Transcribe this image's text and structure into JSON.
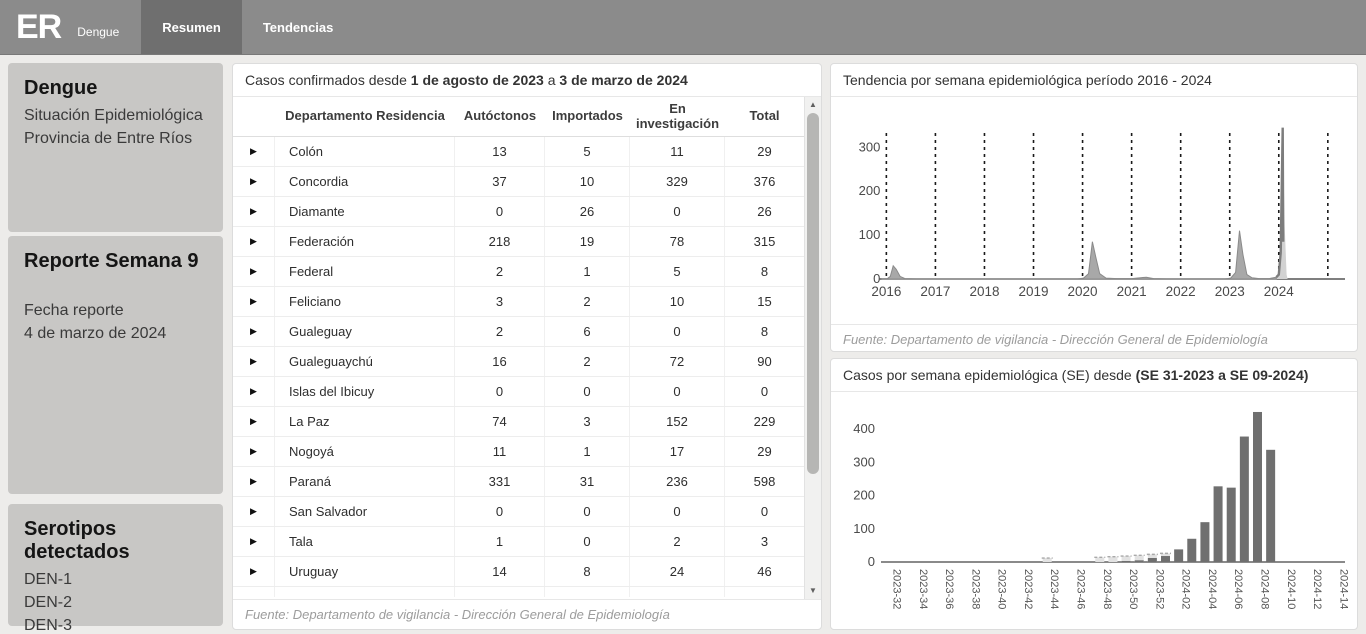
{
  "navbar": {
    "logo": "ER",
    "brand": "Dengue",
    "tabs": [
      {
        "label": "Resumen",
        "active": true
      },
      {
        "label": "Tendencias",
        "active": false
      }
    ]
  },
  "sidebar": {
    "boxes": [
      {
        "title": "Dengue",
        "lines": [
          "Situación Epidemiológica",
          "Provincia de Entre Ríos"
        ]
      },
      {
        "title": "Reporte Semana 9",
        "lines": [
          "Fecha reporte",
          "4 de marzo de 2024"
        ]
      },
      {
        "title": "Serotipos detectados",
        "lines": [
          "DEN-1",
          "DEN-2",
          "DEN-3"
        ]
      }
    ]
  },
  "table_panel": {
    "title": {
      "prefix": "Casos confirmados desde ",
      "bold1": "1 de agosto de 2023",
      "mid": " a ",
      "bold2": "3 de marzo de 2024"
    },
    "columns": [
      "Departamento Residencia",
      "Autóctonos",
      "Importados",
      "En investigación",
      "Total"
    ],
    "expander_icon": "▶",
    "rows": [
      {
        "departamento": "Colón",
        "autoctonos": 13,
        "importados": 5,
        "en_investigacion": 11,
        "total": 29
      },
      {
        "departamento": "Concordia",
        "autoctonos": 37,
        "importados": 10,
        "en_investigacion": 329,
        "total": 376
      },
      {
        "departamento": "Diamante",
        "autoctonos": 0,
        "importados": 26,
        "en_investigacion": 0,
        "total": 26
      },
      {
        "departamento": "Federación",
        "autoctonos": 218,
        "importados": 19,
        "en_investigacion": 78,
        "total": 315
      },
      {
        "departamento": "Federal",
        "autoctonos": 2,
        "importados": 1,
        "en_investigacion": 5,
        "total": 8
      },
      {
        "departamento": "Feliciano",
        "autoctonos": 3,
        "importados": 2,
        "en_investigacion": 10,
        "total": 15
      },
      {
        "departamento": "Gualeguay",
        "autoctonos": 2,
        "importados": 6,
        "en_investigacion": 0,
        "total": 8
      },
      {
        "departamento": "Gualeguaychú",
        "autoctonos": 16,
        "importados": 2,
        "en_investigacion": 72,
        "total": 90
      },
      {
        "departamento": "Islas del Ibicuy",
        "autoctonos": 0,
        "importados": 0,
        "en_investigacion": 0,
        "total": 0
      },
      {
        "departamento": "La Paz",
        "autoctonos": 74,
        "importados": 3,
        "en_investigacion": 152,
        "total": 229
      },
      {
        "departamento": "Nogoyá",
        "autoctonos": 11,
        "importados": 1,
        "en_investigacion": 17,
        "total": 29
      },
      {
        "departamento": "Paraná",
        "autoctonos": 331,
        "importados": 31,
        "en_investigacion": 236,
        "total": 598
      },
      {
        "departamento": "San Salvador",
        "autoctonos": 0,
        "importados": 0,
        "en_investigacion": 0,
        "total": 0
      },
      {
        "departamento": "Tala",
        "autoctonos": 1,
        "importados": 0,
        "en_investigacion": 2,
        "total": 3
      },
      {
        "departamento": "Uruguay",
        "autoctonos": 14,
        "importados": 8,
        "en_investigacion": 24,
        "total": 46
      }
    ],
    "footer": "Fuente: Departamento de vigilancia - Dirección General de Epidemiología"
  },
  "trend_panel": {
    "title": "Tendencia por semana epidemiológica período 2016 - 2024",
    "footer": "Fuente: Departamento de vigilancia - Dirección General de Epidemiología"
  },
  "weekly_panel": {
    "title": {
      "prefix": "Casos por semana epidemiológica (SE) desde ",
      "bold": "(SE 31-2023 a SE 09-2024)"
    }
  },
  "colors": {
    "navbar": "#8b8b8b",
    "navbar_active_tab": "#6f6f6f",
    "sidebar_card": "#c8c7c5",
    "bar_fill": "#6f6f6f",
    "bar_light_fill": "#e2e2e2",
    "area_fill": "#a8a8a8",
    "area_line": "#8a8a8a",
    "area_recent_fill": "#d2d2d2",
    "area_recent_line": "#7d7d7d",
    "gridline": "#1a1a1a",
    "axis": "#555555",
    "tick_text": "#4a4a4a"
  },
  "chart_data": [
    {
      "type": "area",
      "title": "Tendencia por semana epidemiológica período 2016 - 2024",
      "xlabel": "",
      "ylabel": "",
      "xlim": [
        2015.85,
        2025.35
      ],
      "ylim": [
        0,
        360
      ],
      "x_ticks": [
        2016,
        2017,
        2018,
        2019,
        2020,
        2021,
        2022,
        2023,
        2024
      ],
      "y_ticks": [
        0,
        100,
        200,
        300
      ],
      "year_gridlines": [
        2016,
        2017,
        2018,
        2019,
        2020,
        2021,
        2022,
        2023,
        2024,
        2025
      ],
      "grid_style": "dotted-vertical",
      "legend": "none",
      "series": [
        {
          "name": "Casos semanales 2016-2023",
          "points": [
            [
              2015.9,
              0
            ],
            [
              2016.02,
              1
            ],
            [
              2016.08,
              6
            ],
            [
              2016.14,
              30
            ],
            [
              2016.2,
              22
            ],
            [
              2016.28,
              6
            ],
            [
              2016.38,
              1
            ],
            [
              2016.6,
              0
            ],
            [
              2017.5,
              0
            ],
            [
              2018.5,
              0
            ],
            [
              2019.5,
              0
            ],
            [
              2019.9,
              0
            ],
            [
              2020.02,
              2
            ],
            [
              2020.12,
              12
            ],
            [
              2020.2,
              85
            ],
            [
              2020.27,
              50
            ],
            [
              2020.35,
              12
            ],
            [
              2020.48,
              2
            ],
            [
              2020.7,
              1
            ],
            [
              2021.0,
              1
            ],
            [
              2021.18,
              3
            ],
            [
              2021.3,
              4
            ],
            [
              2021.45,
              1
            ],
            [
              2021.7,
              0
            ],
            [
              2022.5,
              0
            ],
            [
              2022.9,
              0
            ],
            [
              2023.02,
              2
            ],
            [
              2023.12,
              15
            ],
            [
              2023.2,
              110
            ],
            [
              2023.27,
              55
            ],
            [
              2023.35,
              10
            ],
            [
              2023.45,
              3
            ],
            [
              2023.6,
              1
            ],
            [
              2023.8,
              1
            ],
            [
              2023.95,
              4
            ]
          ]
        },
        {
          "name": "Casos semanales 2024 (últimas semanas)",
          "points": [
            [
              2023.95,
              4
            ],
            [
              2024.0,
              10
            ],
            [
              2024.04,
              60
            ],
            [
              2024.08,
              345
            ],
            [
              2024.12,
              120
            ],
            [
              2024.16,
              10
            ],
            [
              2024.18,
              0
            ]
          ]
        }
      ],
      "recent_line": [
        [
          2023.95,
          4
        ],
        [
          2024.0,
          10
        ],
        [
          2024.04,
          60
        ],
        [
          2024.08,
          345
        ],
        [
          2024.09,
          85
        ]
      ]
    },
    {
      "type": "bar",
      "title": "Casos por semana epidemiológica (SE) desde SE 31-2023 a SE 09-2024",
      "xlabel": "",
      "ylabel": "",
      "ylim": [
        0,
        470
      ],
      "y_ticks": [
        0,
        100,
        200,
        300,
        400
      ],
      "label_every": 2,
      "legend": "none",
      "categories": [
        "2023-32",
        "2023-33",
        "2023-34",
        "2023-35",
        "2023-36",
        "2023-37",
        "2023-38",
        "2023-39",
        "2023-40",
        "2023-41",
        "2023-42",
        "2023-43",
        "2023-44",
        "2023-45",
        "2023-46",
        "2023-47",
        "2023-48",
        "2023-49",
        "2023-50",
        "2023-51",
        "2023-52",
        "2024-01",
        "2024-02",
        "2024-03",
        "2024-04",
        "2024-05",
        "2024-06",
        "2024-07",
        "2024-08",
        "2024-09",
        "2024-10",
        "2024-11",
        "2024-12",
        "2024-13",
        "2024-14"
      ],
      "values": [
        0,
        0,
        0,
        0,
        0,
        0,
        0,
        0,
        0,
        0,
        0,
        0,
        0,
        0,
        0,
        0,
        0,
        0,
        3,
        5,
        12,
        18,
        38,
        70,
        120,
        228,
        224,
        378,
        452,
        338,
        0,
        0,
        0,
        0,
        0
      ],
      "light_values": [
        0,
        0,
        0,
        0,
        0,
        0,
        0,
        0,
        0,
        0,
        0,
        0,
        12,
        0,
        0,
        0,
        14,
        16,
        18,
        20,
        23,
        26,
        0,
        0,
        0,
        0,
        0,
        0,
        0,
        0,
        0,
        0,
        0,
        0,
        0
      ]
    }
  ]
}
